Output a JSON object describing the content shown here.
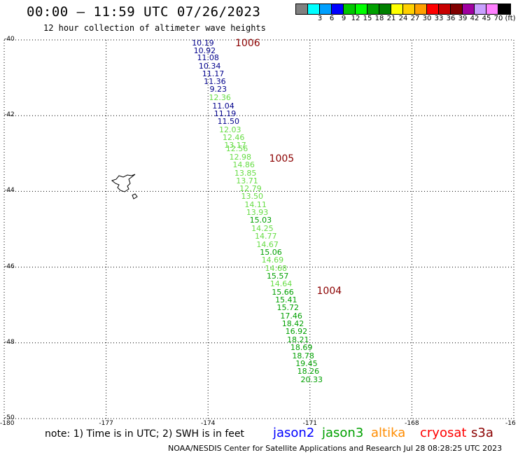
{
  "header": {
    "title": "00:00 — 11:59 UTC 07/26/2023",
    "subtitle": "12 hour collection of altimeter wave heights"
  },
  "legend": {
    "swatches": [
      {
        "color": "#808080",
        "label": ""
      },
      {
        "color": "#00ffff",
        "label": "3"
      },
      {
        "color": "#00a0ff",
        "label": "6"
      },
      {
        "color": "#0000ff",
        "label": "9"
      },
      {
        "color": "#00c800",
        "label": "12"
      },
      {
        "color": "#00ff00",
        "label": "15"
      },
      {
        "color": "#00a000",
        "label": "18"
      },
      {
        "color": "#008000",
        "label": "21"
      },
      {
        "color": "#ffff00",
        "label": "24"
      },
      {
        "color": "#ffd000",
        "label": "27"
      },
      {
        "color": "#ffa000",
        "label": "30"
      },
      {
        "color": "#ff0000",
        "label": "33"
      },
      {
        "color": "#c80000",
        "label": "36"
      },
      {
        "color": "#800000",
        "label": "39"
      },
      {
        "color": "#a000a0",
        "label": "42"
      },
      {
        "color": "#c8a0ff",
        "label": "45"
      },
      {
        "color": "#ff80ff",
        "label": "70"
      },
      {
        "color": "#000000",
        "label": "(ft)"
      }
    ]
  },
  "axes": {
    "lat_labels": [
      "-40",
      "-42",
      "-44",
      "-46",
      "-48",
      "-50"
    ],
    "lon_labels": [
      "-180",
      "-177",
      "-174",
      "-171",
      "-168",
      "-16"
    ]
  },
  "pressure_labels": [
    {
      "text": "1006",
      "lat": -40.05,
      "lon": -173.2
    },
    {
      "text": "1005",
      "lat": -43.1,
      "lon": -172.2
    },
    {
      "text": "1004",
      "lat": -46.6,
      "lon": -170.8
    }
  ],
  "observations": [
    {
      "text": "10.19",
      "lat": -40.05,
      "lon": -174.15,
      "color": "#00008b"
    },
    {
      "text": "10.92",
      "lat": -40.25,
      "lon": -174.1,
      "color": "#00008b"
    },
    {
      "text": "11.08",
      "lat": -40.45,
      "lon": -174.0,
      "color": "#00008b"
    },
    {
      "text": "10.34",
      "lat": -40.66,
      "lon": -173.95,
      "color": "#00008b"
    },
    {
      "text": "11.17",
      "lat": -40.87,
      "lon": -173.85,
      "color": "#00008b"
    },
    {
      "text": "11.36",
      "lat": -41.08,
      "lon": -173.8,
      "color": "#00008b"
    },
    {
      "text": "9.23",
      "lat": -41.28,
      "lon": -173.7,
      "color": "#00008b"
    },
    {
      "text": "12.36",
      "lat": -41.5,
      "lon": -173.65,
      "color": "#66dd44"
    },
    {
      "text": "11.04",
      "lat": -41.71,
      "lon": -173.55,
      "color": "#00008b"
    },
    {
      "text": "11.19",
      "lat": -41.92,
      "lon": -173.5,
      "color": "#00008b"
    },
    {
      "text": "11.50",
      "lat": -42.13,
      "lon": -173.4,
      "color": "#00008b"
    },
    {
      "text": "12.03",
      "lat": -42.34,
      "lon": -173.35,
      "color": "#66dd44"
    },
    {
      "text": "12.46",
      "lat": -42.55,
      "lon": -173.25,
      "color": "#66dd44"
    },
    {
      "text": "13.17",
      "lat": -42.75,
      "lon": -173.2,
      "color": "#66dd44"
    },
    {
      "text": "12.56",
      "lat": -42.85,
      "lon": -173.15,
      "color": "#66dd44"
    },
    {
      "text": "12.98",
      "lat": -43.07,
      "lon": -173.05,
      "color": "#66dd44"
    },
    {
      "text": "14.86",
      "lat": -43.28,
      "lon": -172.95,
      "color": "#66dd44"
    },
    {
      "text": "13.85",
      "lat": -43.49,
      "lon": -172.9,
      "color": "#66dd44"
    },
    {
      "text": "13.71",
      "lat": -43.7,
      "lon": -172.85,
      "color": "#66dd44"
    },
    {
      "text": "12.79",
      "lat": -43.9,
      "lon": -172.75,
      "color": "#66dd44"
    },
    {
      "text": "13.50",
      "lat": -44.11,
      "lon": -172.7,
      "color": "#66dd44"
    },
    {
      "text": "14.11",
      "lat": -44.32,
      "lon": -172.6,
      "color": "#66dd44"
    },
    {
      "text": "13.93",
      "lat": -44.53,
      "lon": -172.55,
      "color": "#66dd44"
    },
    {
      "text": "15.03",
      "lat": -44.74,
      "lon": -172.45,
      "color": "#00a000"
    },
    {
      "text": "14.25",
      "lat": -44.95,
      "lon": -172.4,
      "color": "#66dd44"
    },
    {
      "text": "14.77",
      "lat": -45.16,
      "lon": -172.3,
      "color": "#66dd44"
    },
    {
      "text": "14.67",
      "lat": -45.37,
      "lon": -172.25,
      "color": "#66dd44"
    },
    {
      "text": "15.06",
      "lat": -45.58,
      "lon": -172.15,
      "color": "#00a000"
    },
    {
      "text": "14.69",
      "lat": -45.79,
      "lon": -172.1,
      "color": "#66dd44"
    },
    {
      "text": "14.68",
      "lat": -46.0,
      "lon": -172.0,
      "color": "#66dd44"
    },
    {
      "text": "15.57",
      "lat": -46.21,
      "lon": -171.95,
      "color": "#00a000"
    },
    {
      "text": "14.64",
      "lat": -46.42,
      "lon": -171.85,
      "color": "#66dd44"
    },
    {
      "text": "15.66",
      "lat": -46.63,
      "lon": -171.8,
      "color": "#00a000"
    },
    {
      "text": "15.41",
      "lat": -46.84,
      "lon": -171.7,
      "color": "#00a000"
    },
    {
      "text": "15.72",
      "lat": -47.05,
      "lon": -171.65,
      "color": "#00a000"
    },
    {
      "text": "17.46",
      "lat": -47.26,
      "lon": -171.55,
      "color": "#00a000"
    },
    {
      "text": "18.42",
      "lat": -47.47,
      "lon": -171.5,
      "color": "#00a000"
    },
    {
      "text": "16.92",
      "lat": -47.68,
      "lon": -171.4,
      "color": "#00a000"
    },
    {
      "text": "18.21",
      "lat": -47.89,
      "lon": -171.35,
      "color": "#00a000"
    },
    {
      "text": "18.69",
      "lat": -48.1,
      "lon": -171.25,
      "color": "#00a000"
    },
    {
      "text": "18.78",
      "lat": -48.31,
      "lon": -171.2,
      "color": "#00a000"
    },
    {
      "text": "19.45",
      "lat": -48.52,
      "lon": -171.1,
      "color": "#00a000"
    },
    {
      "text": "18.26",
      "lat": -48.73,
      "lon": -171.05,
      "color": "#00a000"
    },
    {
      "text": "20.33",
      "lat": -48.94,
      "lon": -170.95,
      "color": "#00a000"
    }
  ],
  "footer": {
    "note": "note: 1) Time is in UTC; 2) SWH is in feet",
    "satellites": [
      {
        "name": "jason2",
        "color": "#0000ff"
      },
      {
        "name": "jason3",
        "color": "#00a000"
      },
      {
        "name": "altika",
        "color": "#ff8c00"
      },
      {
        "name": "cryosat",
        "color": "#ff0000"
      },
      {
        "name": "s3a",
        "color": "#8b0000"
      }
    ],
    "credit": "NOAA/NESDIS Center for Satellite Applications and Research   Jul 28 08:28:25 UTC 2023"
  }
}
